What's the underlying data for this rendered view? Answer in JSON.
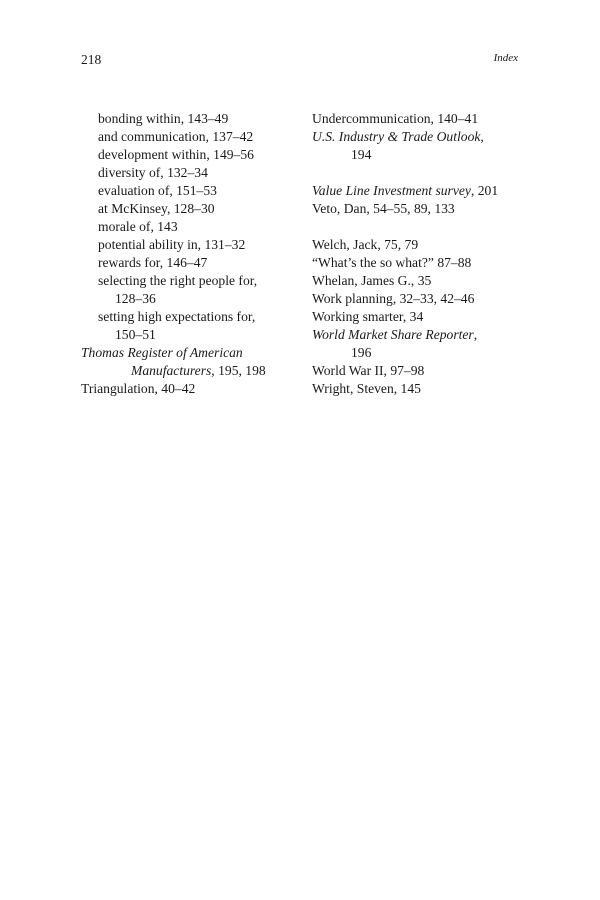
{
  "header": {
    "page_number": "218",
    "running_head": "Index"
  },
  "left_column": [
    {
      "lvl": "l1",
      "r": "bonding within, 143–49"
    },
    {
      "lvl": "l1",
      "r": "and communication, 137–42"
    },
    {
      "lvl": "l1",
      "r": "development within, 149–56"
    },
    {
      "lvl": "l1",
      "r": "diversity of, 132–34"
    },
    {
      "lvl": "l1",
      "r": "evaluation of, 151–53"
    },
    {
      "lvl": "l1",
      "r": "at McKinsey, 128–30"
    },
    {
      "lvl": "l1",
      "r": "morale of, 143"
    },
    {
      "lvl": "l1",
      "r": "potential ability in, 131–32"
    },
    {
      "lvl": "l1",
      "r": "rewards for, 146–47"
    },
    {
      "lvl": "l1",
      "r": "selecting the right people for,"
    },
    {
      "lvl": "l2",
      "r": "128–36"
    },
    {
      "lvl": "l1",
      "r": "setting high expectations for,"
    },
    {
      "lvl": "l2",
      "r": "150–51"
    },
    {
      "lvl": "l0",
      "i": "Thomas Register of American"
    },
    {
      "lvl": "l3",
      "i": "Manufacturers",
      "r": ", 195, 198"
    },
    {
      "lvl": "l0",
      "r": "Triangulation, 40–42"
    }
  ],
  "right_column": [
    {
      "lvl": "l0",
      "r": "Undercommunication, 140–41"
    },
    {
      "lvl": "l0",
      "i": "U.S. Industry & Trade Outlook",
      "r": ","
    },
    {
      "lvl": "l3r",
      "r": "194"
    },
    {
      "gap": true
    },
    {
      "lvl": "l0",
      "i": "Value Line Investment survey",
      "r": ", 201"
    },
    {
      "lvl": "l0",
      "r": "Veto, Dan, 54–55, 89, 133"
    },
    {
      "gap": true
    },
    {
      "lvl": "l0",
      "r": "Welch, Jack, 75, 79"
    },
    {
      "lvl": "l0",
      "r": "“What’s the so what?” 87–88"
    },
    {
      "lvl": "l0",
      "r": "Whelan, James G., 35"
    },
    {
      "lvl": "l0",
      "r": "Work planning, 32–33, 42–46"
    },
    {
      "lvl": "l0",
      "r": "Working smarter, 34"
    },
    {
      "lvl": "l0",
      "i": "World Market Share Reporter",
      "r": ","
    },
    {
      "lvl": "l3r",
      "r": "196"
    },
    {
      "lvl": "l0",
      "r": "World War II, 97–98"
    },
    {
      "lvl": "l0",
      "r": "Wright, Steven, 145"
    }
  ]
}
